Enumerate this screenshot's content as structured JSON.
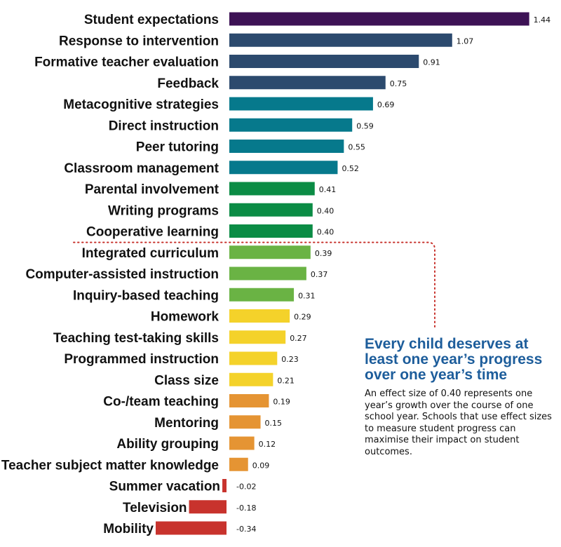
{
  "chart_data": {
    "type": "bar",
    "orientation": "horizontal",
    "categories": [
      "Student expectations",
      "Response to intervention",
      "Formative teacher evaluation",
      "Feedback",
      "Metacognitive strategies",
      "Direct instruction",
      "Peer tutoring",
      "Classroom management",
      "Parental involvement",
      "Writing programs",
      "Cooperative learning",
      "Integrated curriculum",
      "Computer-assisted instruction",
      "Inquiry-based teaching",
      "Homework",
      "Teaching test-taking skills",
      "Programmed instruction",
      "Class size",
      "Co-/team teaching",
      "Mentoring",
      "Ability grouping",
      "Teacher subject matter knowledge",
      "Summer vacation",
      "Television",
      "Mobility"
    ],
    "values": [
      1.44,
      1.07,
      0.91,
      0.75,
      0.69,
      0.59,
      0.55,
      0.52,
      0.41,
      0.4,
      0.4,
      0.39,
      0.37,
      0.31,
      0.29,
      0.27,
      0.23,
      0.21,
      0.19,
      0.15,
      0.12,
      0.09,
      -0.02,
      -0.18,
      -0.34
    ],
    "value_labels": [
      "1.44",
      "1.07",
      "0.91",
      "0.75",
      "0.69",
      "0.59",
      "0.55",
      "0.52",
      "0.41",
      "0.40",
      "0.40",
      "0.39",
      "0.37",
      "0.31",
      "0.29",
      "0.27",
      "0.23",
      "0.21",
      "0.19",
      "0.15",
      "0.12",
      "0.09",
      "-0.02",
      "-0.18",
      "-0.34"
    ],
    "bar_colors": [
      "#3d1255",
      "#2c4a6e",
      "#2c4a6e",
      "#2c4a6e",
      "#06798c",
      "#06798c",
      "#06798c",
      "#06798c",
      "#0b8c45",
      "#0b8c45",
      "#0b8c45",
      "#6ab344",
      "#6ab344",
      "#6ab344",
      "#f4d22a",
      "#f4d22a",
      "#f4d22a",
      "#f4d22a",
      "#e59433",
      "#e59433",
      "#e59433",
      "#e59433",
      "#c8332d",
      "#c8332d",
      "#c8332d"
    ],
    "threshold": 0.4,
    "threshold_line": "dotted",
    "threshold_color": "#c8332d",
    "xlim": [
      -0.34,
      1.44
    ]
  },
  "annotation": {
    "headline": "Every child deserves at least one year’s progress over one year’s time",
    "body": "An effect size of 0.40 represents one year’s growth over the course of one school year. Schools that use effect sizes to measure student progress can maximise their impact on student outcomes."
  }
}
